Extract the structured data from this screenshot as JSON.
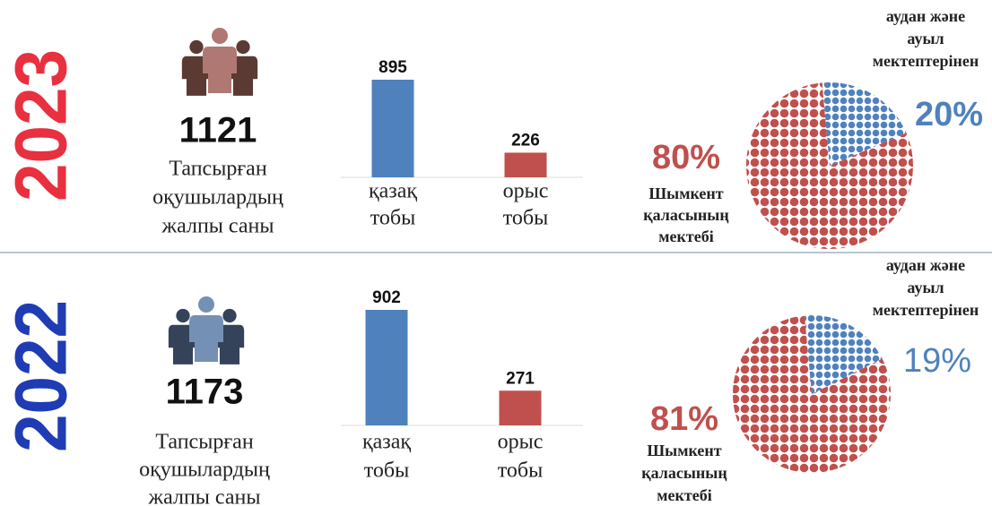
{
  "panels": [
    {
      "year": "2023",
      "year_color": "#e8303f",
      "total": 1121,
      "total_label": [
        "Тапсырған",
        "оқушылардың",
        "жалпы саны"
      ],
      "bars": {
        "categories": [
          [
            "қазақ",
            "тобы"
          ],
          [
            "орыс",
            "тобы"
          ]
        ],
        "values": [
          895,
          226
        ],
        "colors": [
          "#4f81bd",
          "#c0504d"
        ]
      },
      "share": {
        "values": [
          80,
          20
        ],
        "value_labels": [
          "80%",
          "20%"
        ],
        "colors": [
          "#c0504d",
          "#4f81bd"
        ],
        "labels": [
          [
            "Шымкент",
            "қаласының",
            "мектебі"
          ],
          [
            "аудан және",
            "ауыл",
            "мектептерінен"
          ]
        ]
      }
    },
    {
      "year": "2022",
      "year_color": "#1f3cb4",
      "total": 1173,
      "total_label": [
        "Тапсырған",
        "оқушылардың",
        "жалпы саны"
      ],
      "bars": {
        "categories": [
          [
            "қазақ",
            "тобы"
          ],
          [
            "орыс",
            "тобы"
          ]
        ],
        "values": [
          902,
          271
        ],
        "colors": [
          "#4f81bd",
          "#c0504d"
        ]
      },
      "share": {
        "values": [
          81,
          19
        ],
        "value_labels": [
          "81%",
          "19%"
        ],
        "colors": [
          "#c0504d",
          "#4f81bd"
        ],
        "labels": [
          [
            "Шымкент",
            "қаласының",
            "мектебі"
          ],
          [
            "аудан және",
            "ауыл",
            "мектептерінен"
          ]
        ]
      }
    }
  ]
}
